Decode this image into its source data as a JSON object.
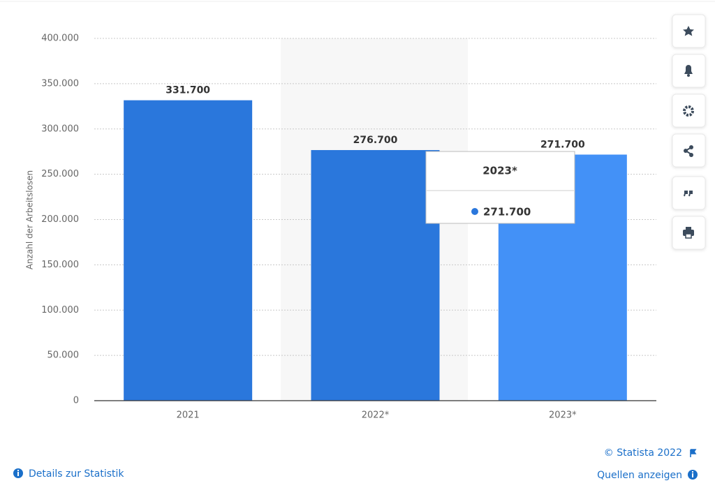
{
  "chart_data": {
    "type": "bar",
    "y_label": "Anzahl der Arbeitslosen",
    "categories": [
      "2021",
      "2022*",
      "2023*"
    ],
    "values": [
      331700,
      276700,
      271700
    ],
    "value_labels": [
      "331.700",
      "276.700",
      "271.700"
    ],
    "colors": [
      "#2a77dc",
      "#2a77dc",
      "#4391f7"
    ],
    "ylim": [
      0,
      400000
    ],
    "yticks": [
      0,
      {
        "value": 50000,
        "label": "50.000"
      },
      {
        "value": 100000,
        "label": "100.000"
      },
      {
        "value": 150000,
        "label": "150.000"
      },
      {
        "value": 200000,
        "label": "200.000"
      },
      {
        "value": 250000,
        "label": "250.000"
      },
      {
        "value": 300000,
        "label": "300.000"
      },
      {
        "value": 350000,
        "label": "350.000"
      },
      {
        "value": 400000,
        "label": "400.000"
      }
    ],
    "grid": true
  },
  "footer": {
    "copyright": "© Statista 2022",
    "details": "Details zur Statistik",
    "sources": "Quellen anzeigen"
  }
}
